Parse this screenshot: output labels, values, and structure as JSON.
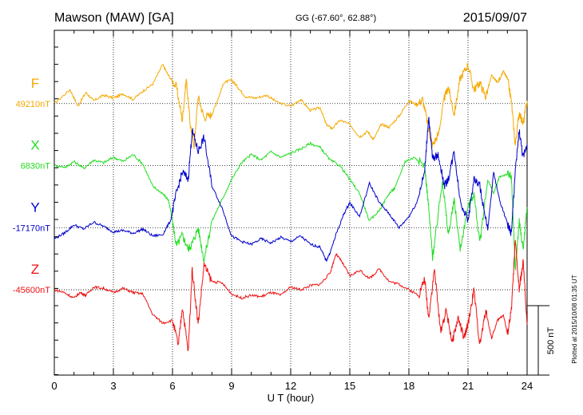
{
  "header": {
    "station": "Mawson (MAW)  [GA]",
    "coords": "GG (-67.60°,  62.88°)",
    "date": "2015/09/07"
  },
  "footer": {
    "plotted": "Plotted at 2015/10/08 01:35 UT"
  },
  "chart_data": {
    "type": "line",
    "xlabel": "U T (hour)",
    "xlim": [
      0,
      24
    ],
    "xticks": [
      "0",
      "3",
      "6",
      "9",
      "12",
      "15",
      "18",
      "21",
      "24"
    ],
    "scale_bar": "500 nT",
    "grid": true,
    "series": [
      {
        "name": "F",
        "baseline": "49210nT",
        "color": "#f5a800",
        "x": [
          0,
          0.8,
          1.2,
          1.6,
          2.0,
          2.5,
          3.0,
          3.5,
          4.0,
          4.5,
          5.0,
          5.5,
          5.8,
          6.2,
          6.5,
          6.7,
          6.9,
          7.1,
          7.3,
          7.6,
          8.0,
          8.3,
          8.6,
          9.0,
          9.3,
          9.7,
          10.2,
          10.8,
          11.3,
          12.0,
          12.5,
          13.0,
          13.5,
          13.8,
          14.1,
          14.5,
          15.0,
          15.5,
          15.9,
          16.2,
          16.6,
          17.0,
          17.5,
          18.0,
          18.4,
          18.7,
          19.0,
          19.2,
          19.5,
          19.8,
          20.0,
          20.3,
          20.6,
          21.0,
          21.3,
          21.6,
          21.9,
          22.2,
          22.5,
          22.8,
          23.0,
          23.2,
          23.4,
          23.6,
          23.8,
          24.0
        ],
        "values": [
          0,
          100,
          -20,
          80,
          20,
          60,
          40,
          70,
          30,
          90,
          140,
          280,
          200,
          120,
          -120,
          180,
          -150,
          -300,
          50,
          -100,
          -80,
          30,
          150,
          170,
          120,
          50,
          40,
          60,
          10,
          -20,
          30,
          -50,
          -30,
          -150,
          -180,
          -120,
          -150,
          -240,
          -200,
          -260,
          -150,
          -170,
          -90,
          20,
          -10,
          30,
          -180,
          -300,
          -220,
          40,
          120,
          -80,
          180,
          280,
          100,
          150,
          50,
          200,
          150,
          230,
          180,
          20,
          -300,
          -60,
          -150,
          20
        ],
        "offset_pct": 18
      },
      {
        "name": "X",
        "baseline": "6830nT",
        "color": "#22dd22",
        "x": [
          0,
          0.6,
          1.0,
          1.5,
          2.0,
          2.5,
          3.0,
          3.5,
          4.0,
          4.5,
          5.0,
          5.5,
          5.8,
          6.0,
          6.2,
          6.5,
          6.8,
          7.0,
          7.3,
          7.6,
          8.0,
          8.5,
          9.0,
          9.5,
          10.0,
          10.5,
          11.0,
          11.5,
          12.0,
          12.5,
          13.0,
          13.5,
          14.0,
          14.5,
          15.0,
          15.5,
          16.0,
          16.5,
          17.0,
          17.3,
          17.8,
          18.3,
          18.8,
          19.0,
          19.2,
          19.4,
          19.7,
          20.0,
          20.3,
          20.6,
          21.0,
          21.3,
          21.6,
          22.0,
          22.3,
          22.6,
          23.0,
          23.2,
          23.4,
          23.6,
          23.8,
          24.0
        ],
        "values": [
          0,
          -10,
          30,
          -20,
          40,
          20,
          60,
          30,
          80,
          10,
          -150,
          -200,
          -250,
          -400,
          -580,
          -500,
          -600,
          -560,
          -450,
          -680,
          -400,
          -250,
          -100,
          20,
          80,
          40,
          100,
          60,
          90,
          120,
          160,
          130,
          40,
          0,
          -100,
          -200,
          -400,
          -320,
          -200,
          -160,
          30,
          60,
          0,
          -300,
          -660,
          -450,
          -100,
          -500,
          -250,
          -600,
          -300,
          -200,
          -560,
          -100,
          -200,
          -80,
          -60,
          -80,
          -750,
          -400,
          -600,
          -300
        ],
        "offset_pct": 36
      },
      {
        "name": "Y",
        "baseline": "-17170nT",
        "color": "#0000cc",
        "x": [
          0,
          0.5,
          1.0,
          1.5,
          2.0,
          2.5,
          3.0,
          3.5,
          4.0,
          4.5,
          5.0,
          5.5,
          5.9,
          6.2,
          6.5,
          6.8,
          7.0,
          7.3,
          7.6,
          8.0,
          8.5,
          9.0,
          9.5,
          10.0,
          10.5,
          11.0,
          11.5,
          12.0,
          12.5,
          13.0,
          13.5,
          13.8,
          14.0,
          14.3,
          14.7,
          15.0,
          15.5,
          16.0,
          16.5,
          17.0,
          17.5,
          18.0,
          18.4,
          18.8,
          19.0,
          19.2,
          19.5,
          19.8,
          20.0,
          20.3,
          20.6,
          21.0,
          21.3,
          21.6,
          22.0,
          22.3,
          22.6,
          23.0,
          23.2,
          23.4,
          23.6,
          23.8,
          24.0
        ],
        "values": [
          -80,
          -40,
          20,
          -10,
          40,
          10,
          -30,
          -20,
          -40,
          -10,
          -60,
          -50,
          50,
          250,
          400,
          350,
          700,
          550,
          650,
          300,
          150,
          -60,
          -100,
          -120,
          -80,
          -110,
          -70,
          -100,
          -60,
          -120,
          -140,
          -240,
          -180,
          -50,
          100,
          180,
          80,
          320,
          180,
          100,
          0,
          80,
          180,
          400,
          800,
          500,
          520,
          300,
          350,
          550,
          200,
          50,
          350,
          300,
          -20,
          400,
          200,
          30,
          -40,
          400,
          700,
          500,
          600
        ],
        "offset_pct": 54
      },
      {
        "name": "Z",
        "baseline": "-45600nT",
        "color": "#ee1111",
        "x": [
          0,
          0.5,
          1.0,
          1.3,
          1.6,
          2.0,
          2.5,
          3.0,
          3.5,
          4.0,
          4.5,
          5.0,
          5.5,
          6.0,
          6.3,
          6.5,
          6.8,
          7.0,
          7.3,
          7.6,
          8.0,
          8.5,
          9.0,
          9.5,
          10.0,
          10.5,
          11.0,
          11.5,
          12.0,
          12.5,
          13.0,
          13.5,
          14.0,
          14.3,
          14.6,
          15.0,
          15.5,
          16.0,
          16.5,
          17.0,
          17.5,
          18.0,
          18.5,
          18.8,
          19.0,
          19.3,
          19.6,
          19.9,
          20.2,
          20.5,
          20.8,
          21.0,
          21.3,
          21.6,
          21.9,
          22.2,
          22.5,
          22.8,
          23.0,
          23.2,
          23.4,
          23.6,
          23.8,
          24.0
        ],
        "values": [
          0,
          -20,
          -60,
          -20,
          -40,
          20,
          10,
          -20,
          10,
          -20,
          -30,
          -180,
          -240,
          -220,
          -400,
          -120,
          -450,
          150,
          -250,
          180,
          60,
          50,
          -30,
          -60,
          -40,
          -50,
          -20,
          -40,
          20,
          0,
          30,
          40,
          120,
          260,
          200,
          100,
          140,
          80,
          150,
          60,
          40,
          0,
          -40,
          80,
          -200,
          150,
          -300,
          -150,
          -380,
          -200,
          -350,
          -250,
          0,
          -400,
          -150,
          -350,
          -220,
          -180,
          -320,
          -150,
          350,
          0,
          200,
          -250
        ],
        "offset_pct": 72
      }
    ]
  }
}
